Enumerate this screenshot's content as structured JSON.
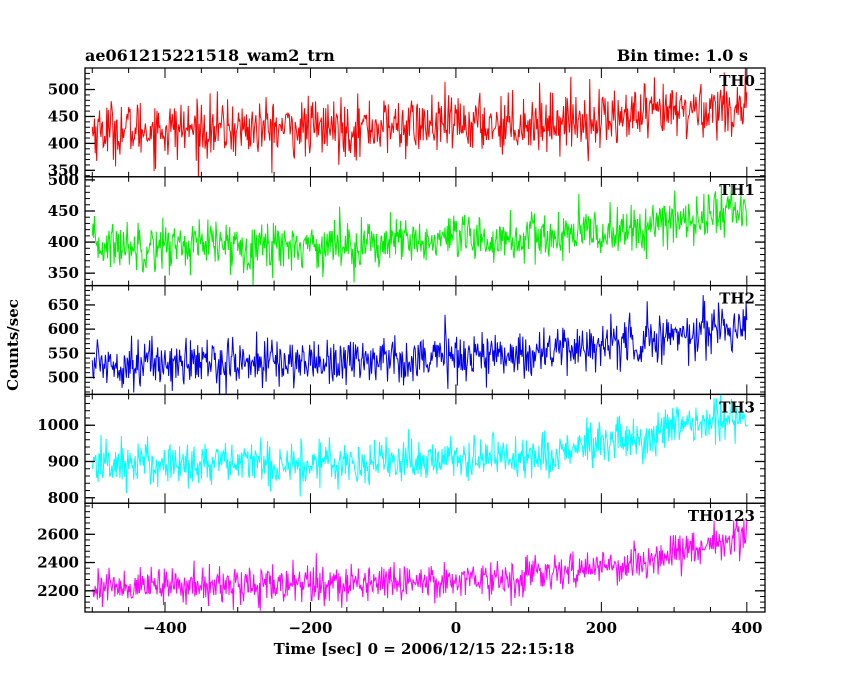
{
  "chart_data": {
    "type": "line",
    "title": "ae061215221518_wam2_trn",
    "subtitle": "Bin time: 1.0 s",
    "xlabel": "Time [sec] 0 = 2006/12/15 22:15:18",
    "ylabel": "Counts/sec",
    "xlim": [
      -510,
      425
    ],
    "x_ticks": [
      -400,
      -200,
      0,
      200,
      400
    ],
    "x_tick_labels": [
      "−400",
      "−200",
      "0",
      "200",
      "400"
    ],
    "x_range_data": [
      -500,
      400
    ],
    "grid": false,
    "panels": [
      {
        "name": "TH0",
        "color": "#ff0000",
        "ylim": [
          338,
          540
        ],
        "y_ticks": [
          350,
          400,
          450,
          500
        ],
        "y_tick_labels": [
          "350",
          "400",
          "450",
          "500"
        ],
        "trend": {
          "x": [
            -500,
            -200,
            100,
            250,
            350,
            400
          ],
          "y": [
            425,
            428,
            438,
            450,
            465,
            470
          ]
        },
        "noise_sd": 27
      },
      {
        "name": "TH1",
        "color": "#00ee00",
        "ylim": [
          330,
          505
        ],
        "y_ticks": [
          350,
          400,
          450,
          500
        ],
        "y_tick_labels": [
          "350",
          "400",
          "450",
          "500"
        ],
        "trend": {
          "x": [
            -500,
            -200,
            100,
            250,
            350,
            400
          ],
          "y": [
            395,
            395,
            405,
            420,
            445,
            455
          ]
        },
        "noise_sd": 20
      },
      {
        "name": "TH2",
        "color": "#0000ee",
        "ylim": [
          465,
          690
        ],
        "y_ticks": [
          500,
          550,
          600,
          650
        ],
        "y_tick_labels": [
          "500",
          "550",
          "600",
          "650"
        ],
        "trend": {
          "x": [
            -500,
            -200,
            100,
            250,
            350,
            400
          ],
          "y": [
            530,
            532,
            550,
            575,
            600,
            610
          ]
        },
        "noise_sd": 25
      },
      {
        "name": "TH3",
        "color": "#00ffff",
        "ylim": [
          785,
          1085
        ],
        "y_ticks": [
          800,
          900,
          1000
        ],
        "y_tick_labels": [
          "800",
          "900",
          "1000"
        ],
        "trend": {
          "x": [
            -500,
            -200,
            100,
            250,
            350,
            400
          ],
          "y": [
            895,
            895,
            915,
            960,
            1010,
            1030
          ]
        },
        "noise_sd": 32
      },
      {
        "name": "TH0123",
        "color": "#ff00ff",
        "ylim": [
          2050,
          2820
        ],
        "y_ticks": [
          2200,
          2400,
          2600
        ],
        "y_tick_labels": [
          "2200",
          "2400",
          "2600"
        ],
        "trend": {
          "x": [
            -500,
            -200,
            100,
            250,
            350,
            400
          ],
          "y": [
            2230,
            2245,
            2300,
            2400,
            2530,
            2610
          ]
        },
        "noise_sd": 65
      }
    ]
  }
}
